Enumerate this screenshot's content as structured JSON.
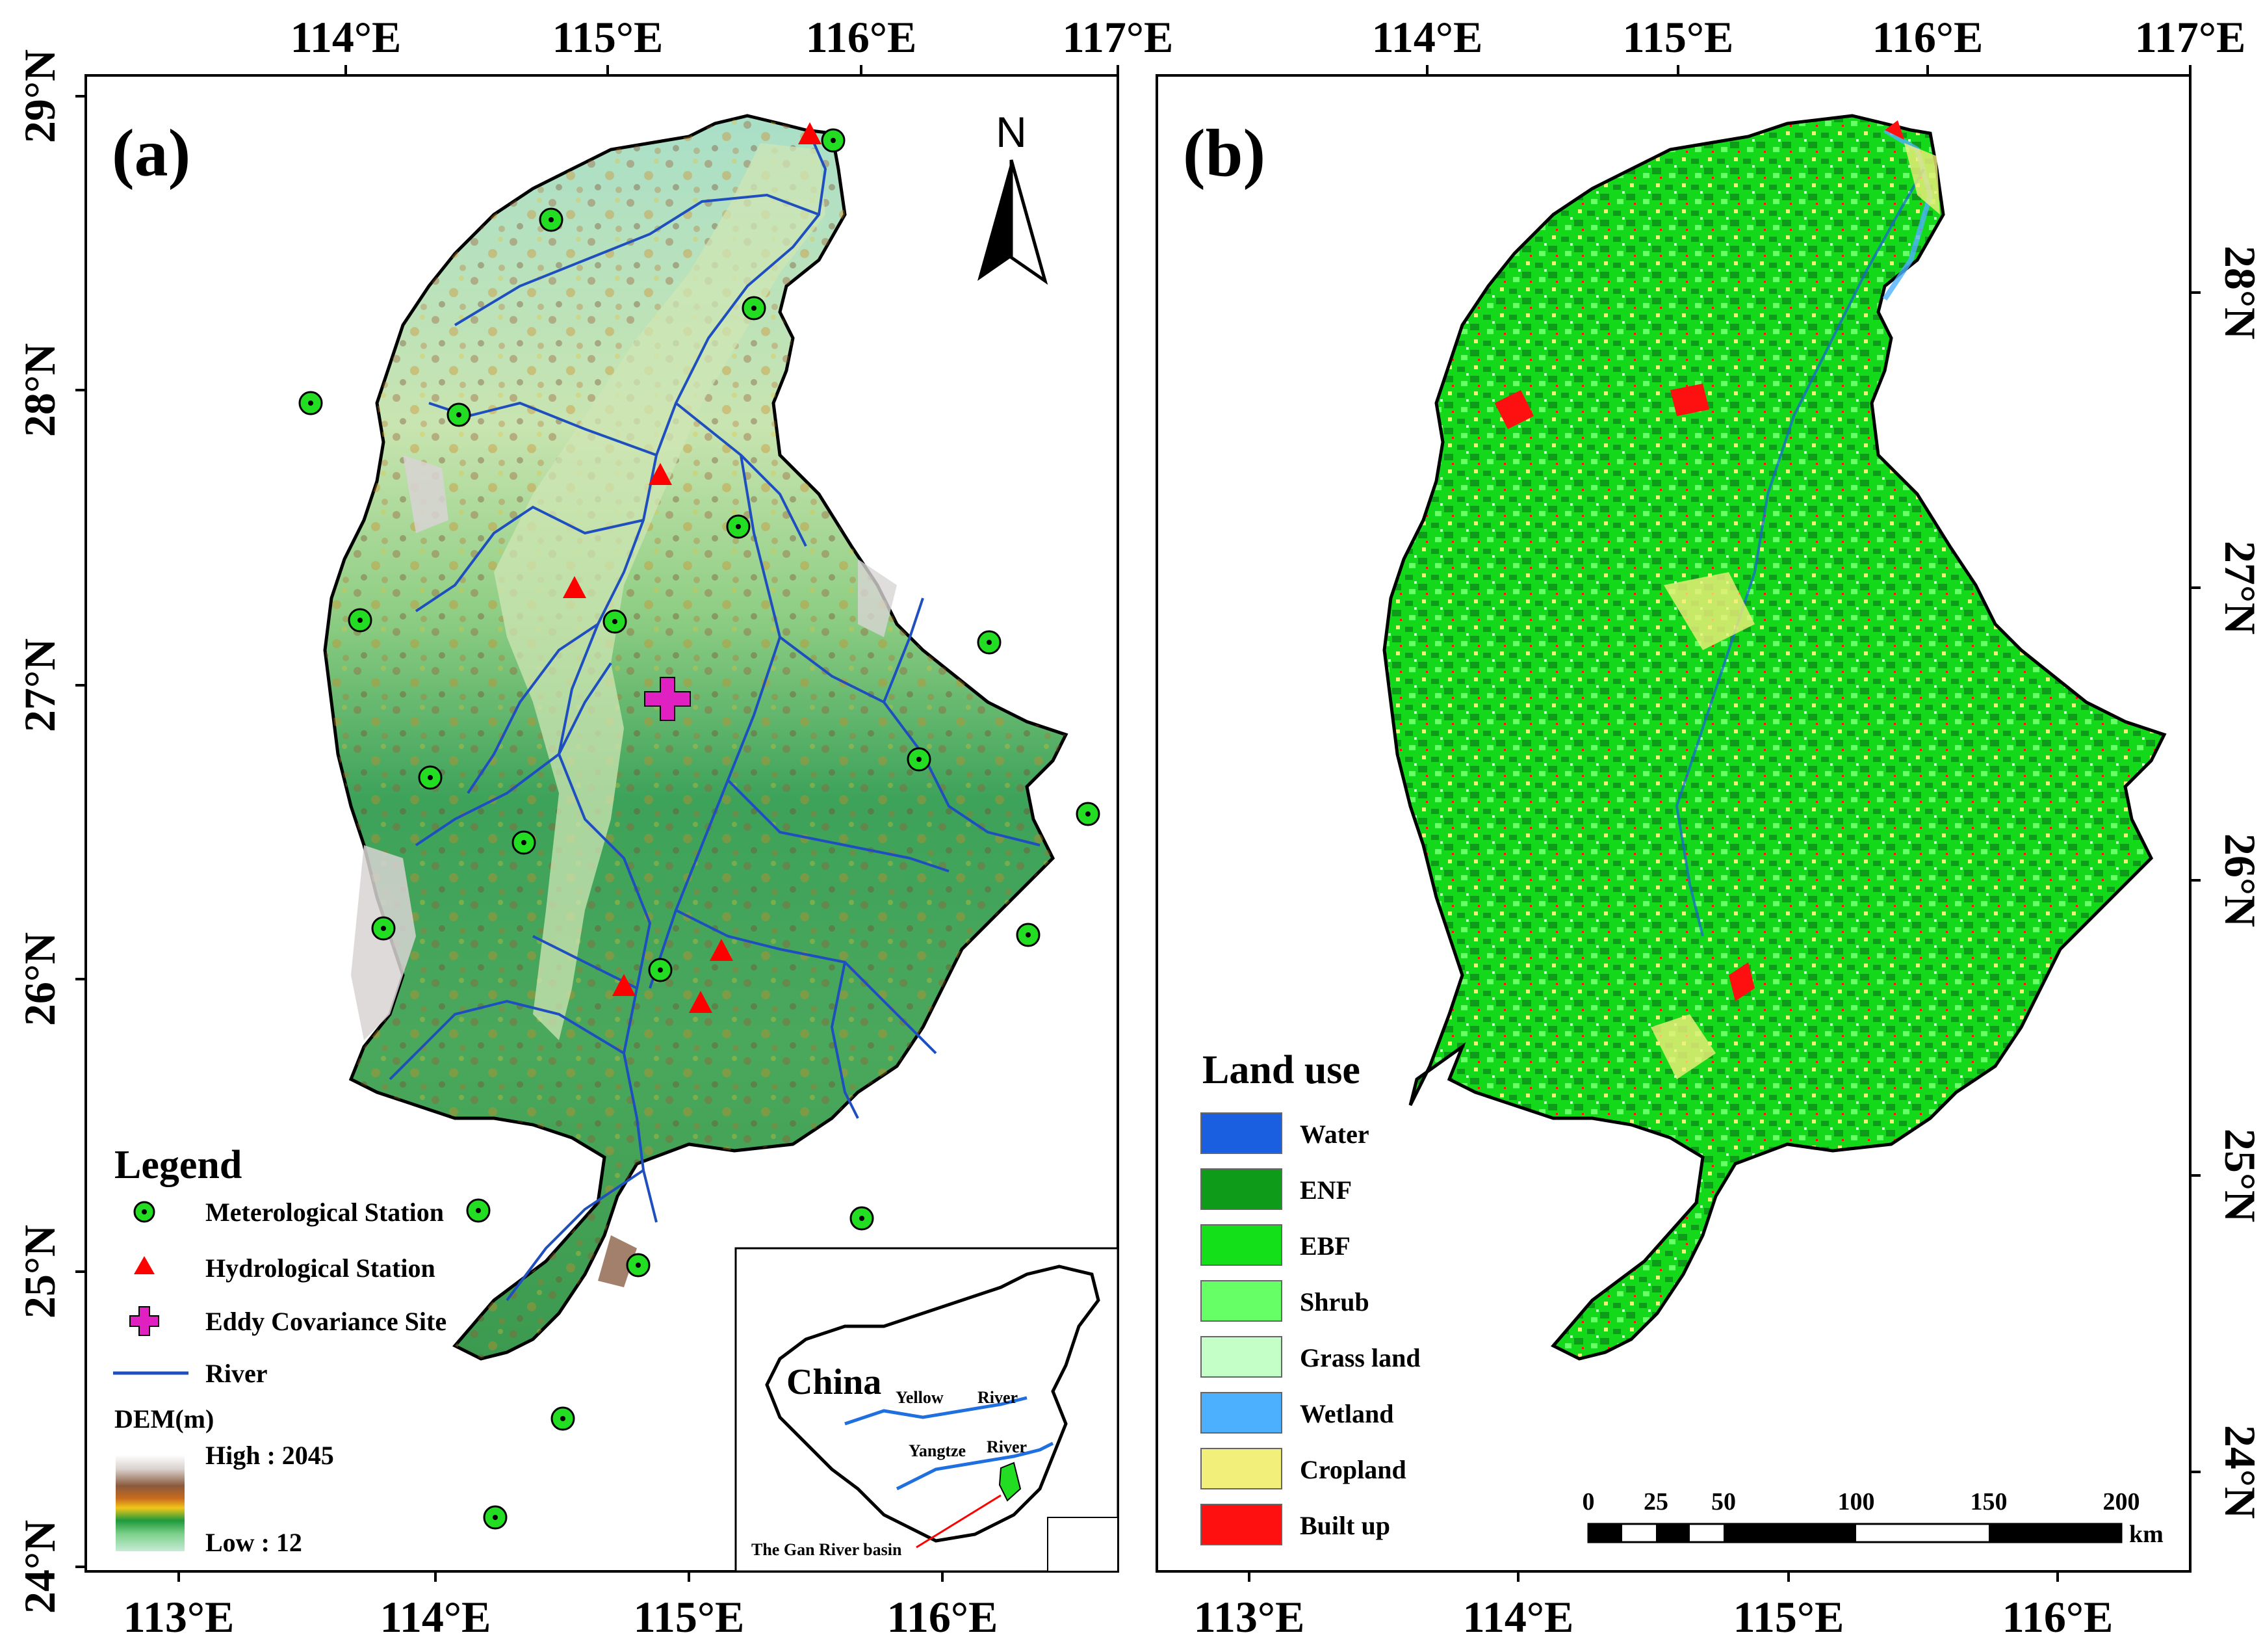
{
  "panels": {
    "a": {
      "label": "(a)"
    },
    "b": {
      "label": "(b)"
    }
  },
  "axes": {
    "a": {
      "top_lon": [
        "114°E",
        "115°E",
        "116°E",
        "117°E"
      ],
      "bottom_lon": [
        "113°E",
        "114°E",
        "115°E",
        "116°E"
      ],
      "left_lat": [
        "29°N",
        "28°N",
        "27°N",
        "26°N",
        "25°N",
        "24°N"
      ]
    },
    "b": {
      "top_lon": [
        "114°E",
        "115°E",
        "116°E",
        "117°E"
      ],
      "bottom_lon": [
        "113°E",
        "114°E",
        "115°E",
        "116°E"
      ],
      "right_lat": [
        "28°N",
        "27°N",
        "26°N",
        "25°N",
        "24°N"
      ]
    }
  },
  "north_arrow": {
    "label": "N"
  },
  "legend_a": {
    "title": "Legend",
    "items": [
      {
        "label": "Meterological Station",
        "symbol": "circle",
        "color": "#22dd22"
      },
      {
        "label": "Hydrological Station",
        "symbol": "triangle",
        "color": "#ff0000"
      },
      {
        "label": "Eddy Covariance Site",
        "symbol": "cross",
        "color": "#e020c0"
      },
      {
        "label": "River",
        "symbol": "line",
        "color": "#1f4fbf"
      }
    ],
    "dem_title": "DEM(m)",
    "dem_high": "High : 2045",
    "dem_low": "Low : 12"
  },
  "inset": {
    "country": "China",
    "river_yellow_1": "Yellow",
    "river_yellow_2": "River",
    "river_yangtze_1": "Yangtze",
    "river_yangtze_2": "River",
    "basin_label": "The Gan River basin"
  },
  "legend_b": {
    "title": "Land use",
    "items": [
      {
        "label": "Water",
        "color": "#1a5fe0"
      },
      {
        "label": "ENF",
        "color": "#0f9b1a"
      },
      {
        "label": "EBF",
        "color": "#14e01a"
      },
      {
        "label": "Shrub",
        "color": "#66ff66"
      },
      {
        "label": "Grass land",
        "color": "#c4ffc8"
      },
      {
        "label": "Wetland",
        "color": "#4db0ff"
      },
      {
        "label": "Cropland",
        "color": "#f2ef7a"
      },
      {
        "label": "Built up",
        "color": "#ff1010"
      }
    ]
  },
  "scale_bar": {
    "labels": [
      "0",
      "25",
      "50",
      "100",
      "150",
      "200"
    ],
    "unit": "km"
  }
}
